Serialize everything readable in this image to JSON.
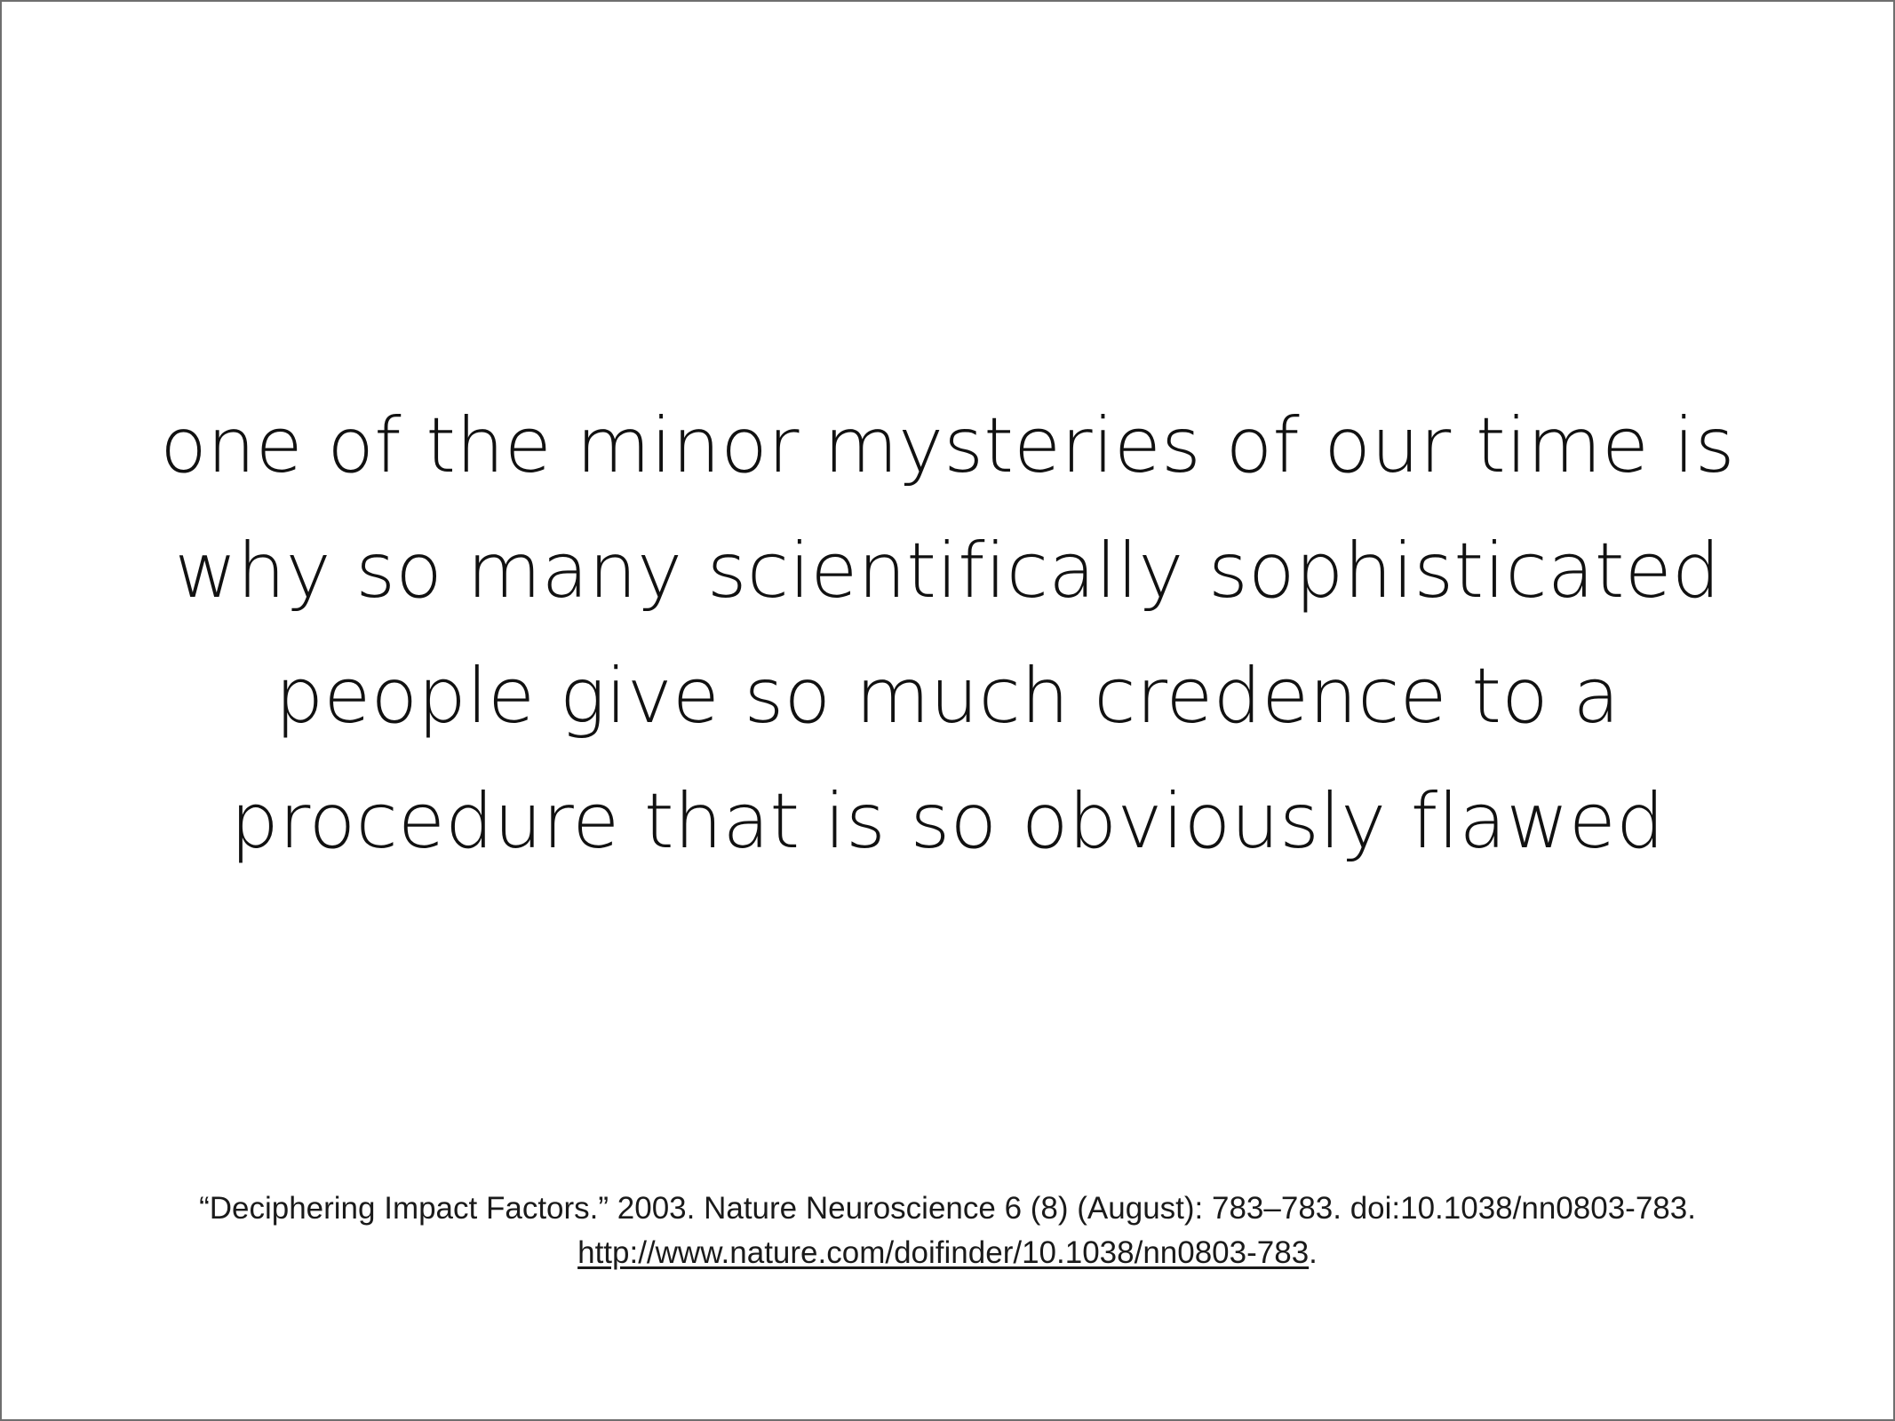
{
  "slide": {
    "quote_lines": [
      "one of the minor mysteries of our time is",
      "why so many scientifically sophisticated",
      "people give so much credence to a",
      "procedure that is so obviously flawed"
    ],
    "citation": {
      "reference": "“Deciphering Impact Factors.” 2003. Nature Neuroscience 6 (8) (August): 783–783. doi:10.1038/nn0803-783.",
      "link": "http://www.nature.com/doifinder/10.1038/nn0803-783",
      "link_suffix": "."
    }
  }
}
